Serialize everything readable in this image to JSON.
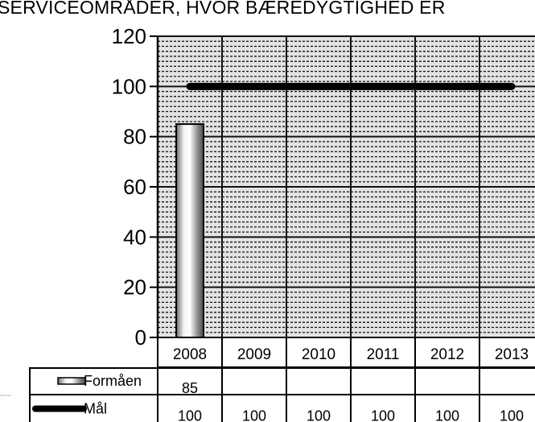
{
  "title": "SERVICEOMRÅDER, HVOR BÆREDYGTIGHED ER",
  "colors": {
    "plot_bg": "#e3e3e3",
    "grid": "#111111",
    "target_line": "#000000",
    "bar_light": "#ffffff",
    "bar_dark": "#555555"
  },
  "chart_data": {
    "type": "bar",
    "title": "SERVICEOMRÅDER, HVOR BÆREDYGTIGHED ER",
    "categories": [
      "2008",
      "2009",
      "2010",
      "2011",
      "2012",
      "2013"
    ],
    "ylim": [
      0,
      120
    ],
    "yticks": [
      0,
      20,
      40,
      60,
      80,
      100,
      120
    ],
    "grid": true,
    "legend": "data-table",
    "series": [
      {
        "name": "Formåen",
        "type": "bar",
        "values": [
          85,
          null,
          null,
          null,
          null,
          null
        ],
        "labels": [
          "85",
          "",
          "",
          "",
          "",
          ""
        ]
      },
      {
        "name": "Mål",
        "type": "line",
        "values": [
          100,
          100,
          100,
          100,
          100,
          100
        ],
        "labels": [
          "100",
          "100",
          "100",
          "100",
          "100",
          "100"
        ]
      }
    ]
  }
}
